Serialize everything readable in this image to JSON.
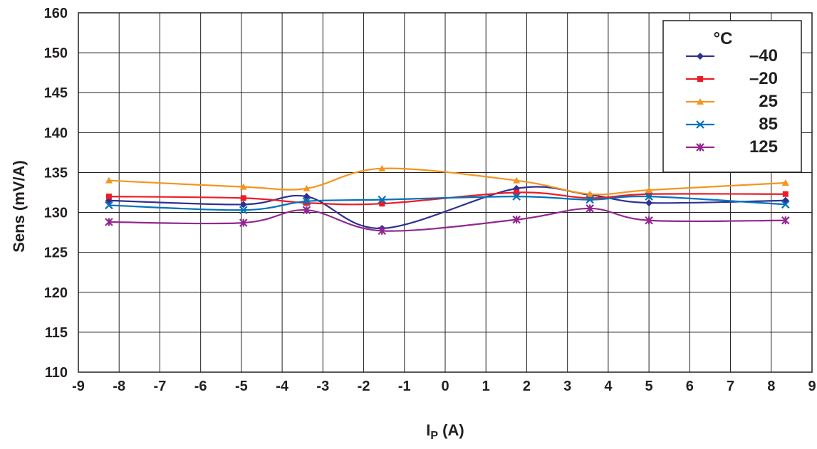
{
  "chart_data": {
    "type": "line",
    "title": "",
    "xlabel": "I",
    "xlabel_sub": "P",
    "xlabel_unit": " (A)",
    "ylabel": "Sens (mV/A)",
    "xlim": [
      -9,
      9
    ],
    "ylim": [
      110,
      160
    ],
    "xticks": [
      "-9",
      "-8",
      "-7",
      "-6",
      "-5",
      "-4",
      "-3",
      "-2",
      "-1",
      "0",
      "1",
      "2",
      "3",
      "4",
      "5",
      "6",
      "7",
      "8",
      "9"
    ],
    "yticks": [
      "110",
      "115",
      "120",
      "125",
      "130",
      "135",
      "140",
      "145",
      "150",
      "160"
    ],
    "grid": true,
    "legend_title": "°C",
    "legend_position": "top-right",
    "series": [
      {
        "name": "–40",
        "color": "#2e3192",
        "marker": "diamond",
        "x": [
          -8.25,
          -4.95,
          -3.4,
          -1.55,
          1.75,
          3.55,
          5.0,
          8.35
        ],
        "y": [
          131.5,
          131.0,
          132.0,
          128.0,
          133.0,
          132.2,
          131.2,
          131.5
        ]
      },
      {
        "name": "–20",
        "color": "#ed1c24",
        "marker": "square",
        "x": [
          -8.25,
          -4.95,
          -3.4,
          -1.55,
          1.75,
          3.55,
          5.0,
          8.35
        ],
        "y": [
          132.0,
          131.8,
          131.2,
          131.1,
          132.5,
          131.8,
          132.3,
          132.3
        ]
      },
      {
        "name": "25",
        "color": "#f7941d",
        "marker": "triangle",
        "x": [
          -8.25,
          -4.95,
          -3.4,
          -1.55,
          1.75,
          3.55,
          5.0,
          8.35
        ],
        "y": [
          134.0,
          133.2,
          133.0,
          135.5,
          134.0,
          132.3,
          132.8,
          133.7
        ]
      },
      {
        "name": "85",
        "color": "#0072bc",
        "marker": "x",
        "x": [
          -8.25,
          -4.95,
          -3.4,
          -1.55,
          1.75,
          3.55,
          5.0,
          8.35
        ],
        "y": [
          130.9,
          130.3,
          131.4,
          131.6,
          132.0,
          131.6,
          132.0,
          131.0
        ]
      },
      {
        "name": "125",
        "color": "#92278f",
        "marker": "star",
        "x": [
          -8.25,
          -4.95,
          -3.4,
          -1.55,
          1.75,
          3.55,
          5.0,
          8.35
        ],
        "y": [
          128.8,
          128.7,
          130.3,
          127.7,
          129.1,
          130.5,
          129.0,
          129.0
        ]
      }
    ]
  }
}
